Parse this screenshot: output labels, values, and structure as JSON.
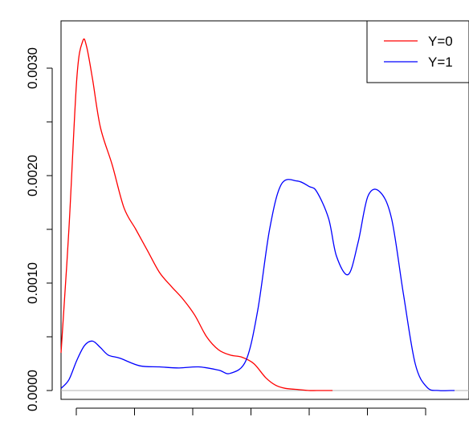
{
  "chart_data": {
    "type": "line",
    "title": "",
    "xlabel": "",
    "ylabel": "",
    "ylim": [
      0,
      0.0034
    ],
    "xlim": [
      0,
      1
    ],
    "y_ticks": [
      0.0,
      0.001,
      0.002,
      0.003
    ],
    "y_tick_labels": [
      "0.0000",
      "0.0010",
      "0.0020",
      "0.0030"
    ],
    "x_tick_count": 7,
    "grid": false,
    "baseline": 0,
    "legend": {
      "position": "top-right",
      "entries": [
        "Y=0",
        "Y=1"
      ]
    },
    "series": [
      {
        "name": "Y=0",
        "color": "#ff0000",
        "x": [
          0.0,
          0.02,
          0.04,
          0.055,
          0.065,
          0.08,
          0.1,
          0.13,
          0.16,
          0.19,
          0.22,
          0.25,
          0.28,
          0.31,
          0.34,
          0.37,
          0.4,
          0.43,
          0.46,
          0.49,
          0.52,
          0.545,
          0.57,
          0.6,
          0.63,
          0.65,
          0.69
        ],
        "y": [
          0.00035,
          0.0015,
          0.0029,
          0.00325,
          0.0032,
          0.0029,
          0.00245,
          0.0021,
          0.0017,
          0.0015,
          0.0013,
          0.0011,
          0.00097,
          0.00085,
          0.0007,
          0.0005,
          0.00038,
          0.00033,
          0.00031,
          0.00025,
          0.00012,
          5e-05,
          2e-05,
          1e-05,
          0.0,
          0.0,
          0.0
        ]
      },
      {
        "name": "Y=1",
        "color": "#0000ff",
        "x": [
          0.0,
          0.02,
          0.04,
          0.06,
          0.08,
          0.1,
          0.12,
          0.15,
          0.2,
          0.25,
          0.3,
          0.35,
          0.4,
          0.43,
          0.47,
          0.5,
          0.53,
          0.56,
          0.6,
          0.63,
          0.65,
          0.68,
          0.7,
          0.73,
          0.755,
          0.78,
          0.81,
          0.84,
          0.87,
          0.9,
          0.93,
          0.96,
          0.99,
          1.0
        ],
        "y": [
          2e-05,
          0.0001,
          0.00028,
          0.00042,
          0.00046,
          0.0004,
          0.00033,
          0.0003,
          0.00023,
          0.00022,
          0.00021,
          0.00022,
          0.00019,
          0.00016,
          0.00028,
          0.00075,
          0.0015,
          0.00192,
          0.00195,
          0.0019,
          0.00185,
          0.0016,
          0.00125,
          0.00108,
          0.00138,
          0.00181,
          0.00185,
          0.0016,
          0.0009,
          0.00025,
          3e-05,
          0.0,
          0.0,
          0.0
        ]
      }
    ]
  }
}
